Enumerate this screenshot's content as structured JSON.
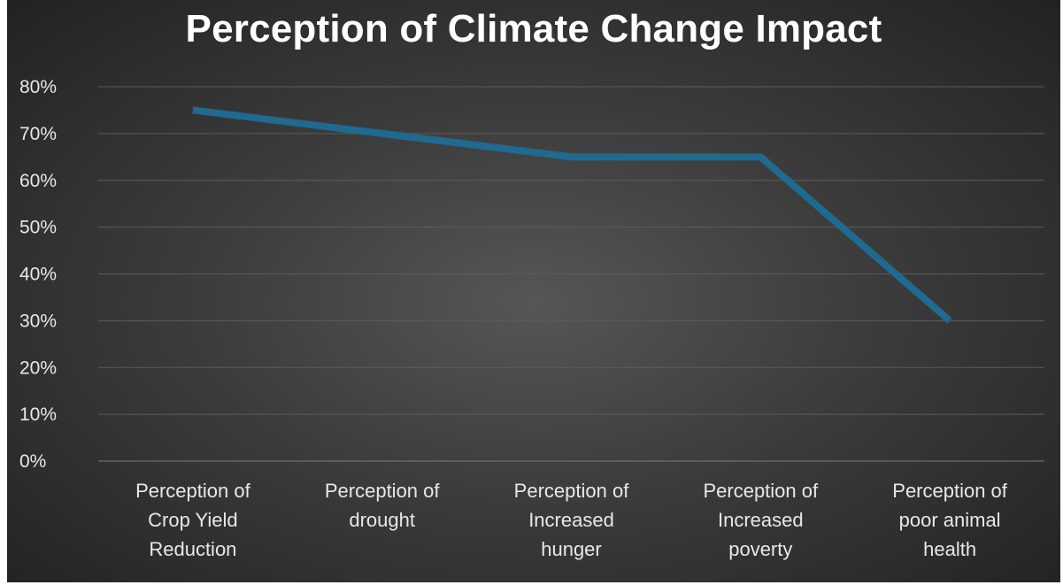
{
  "chart_data": {
    "type": "line",
    "title": "Perception of Climate Change Impact",
    "categories": [
      "Perception of Crop Yield Reduction",
      "Perception of drought",
      "Perception of Increased hunger",
      "Perception of Increased poverty",
      "Perception of poor animal health"
    ],
    "category_lines": [
      [
        "Perception of",
        "Crop Yield",
        "Reduction"
      ],
      [
        "Perception of",
        "drought"
      ],
      [
        "Perception of",
        "Increased",
        "hunger"
      ],
      [
        "Perception of",
        "Increased",
        "poverty"
      ],
      [
        "Perception of",
        "poor animal",
        "health"
      ]
    ],
    "series": [
      {
        "values": [
          75,
          70,
          65,
          65,
          30
        ],
        "color": "#1f6a8f"
      }
    ],
    "ylim": [
      0,
      80
    ],
    "yticks": [
      "0%",
      "10%",
      "20%",
      "30%",
      "40%",
      "50%",
      "60%",
      "70%",
      "80%"
    ],
    "grid": true,
    "legend": "none",
    "background": "#3c3c3c"
  }
}
